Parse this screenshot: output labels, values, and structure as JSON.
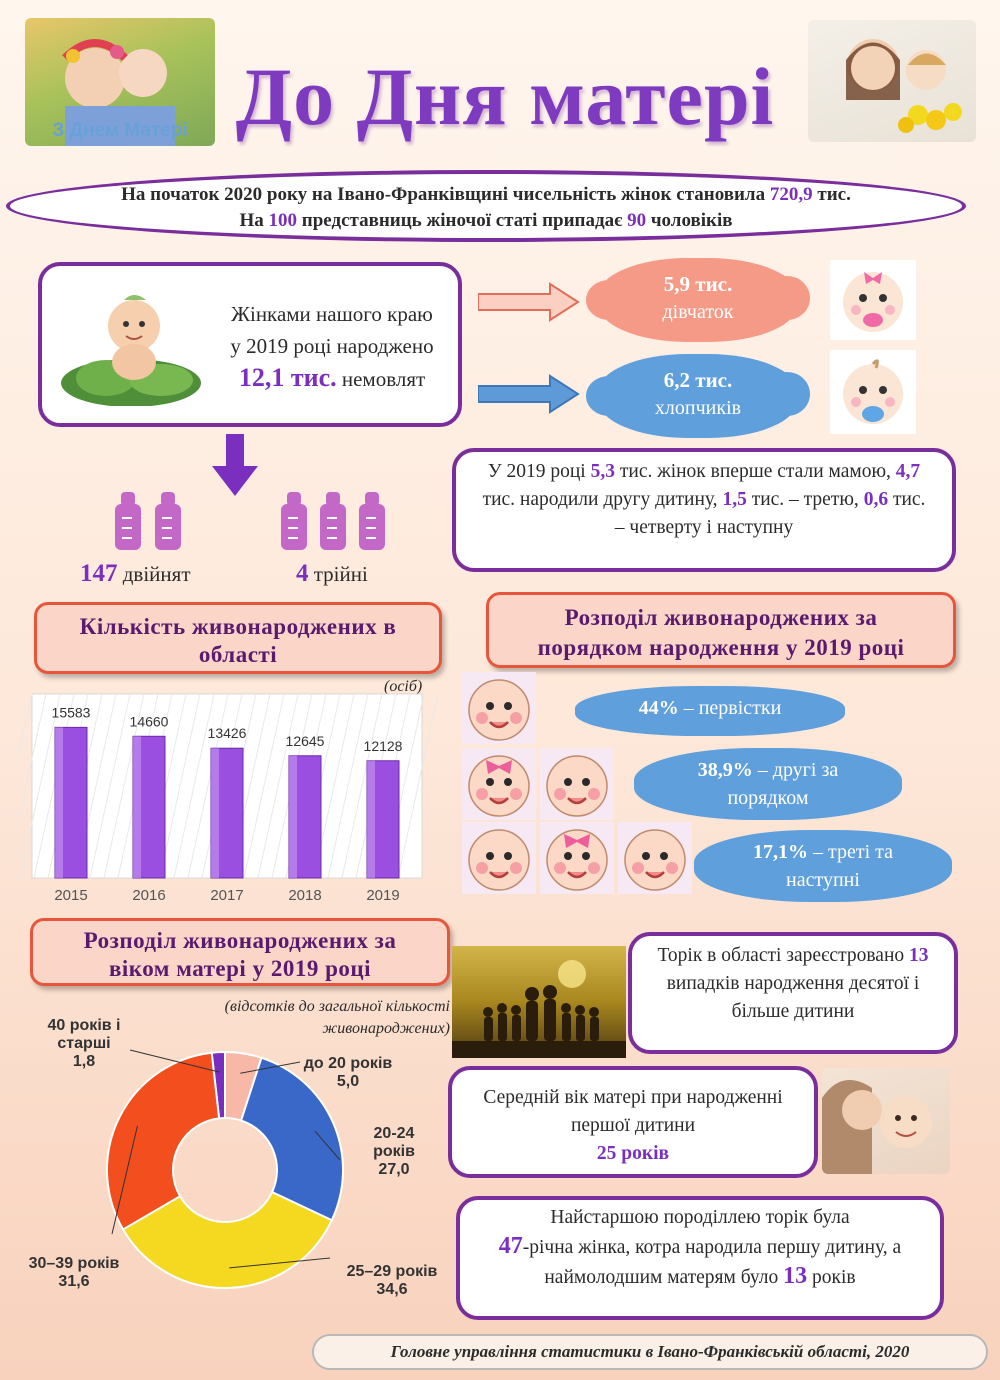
{
  "header": {
    "title": "До Дня матері",
    "photo_caption": "З Днем Матері"
  },
  "intro": {
    "line1_pre": "На початок 2020 року на Івано-Франківщині чисельність жінок становила ",
    "line1_value": "720,9",
    "line1_post": " тис.",
    "line2_pre": "На ",
    "line2_value1": "100",
    "line2_mid": " представниць жіночої статі припадає ",
    "line2_value2": "90",
    "line2_post": " чоловіків"
  },
  "births": {
    "line1": "Жінками нашого краю",
    "line2": "у 2019 році народжено",
    "value": "12,1 тис.",
    "unit": "немовлят",
    "girls_value": "5,9 тис.",
    "girls_label": "дівчаток",
    "boys_value": "6,2 тис.",
    "boys_label": "хлопчиків"
  },
  "multiples": {
    "twins_value": "147",
    "twins_label": "двійнят",
    "triplets_value": "4",
    "triplets_label": "трійні"
  },
  "first_mothers": {
    "p1": "У 2019 році ",
    "v1": "5,3",
    "p2": " тис. жінок  вперше стали мамою, ",
    "v2": "4,7",
    "p3": " тис. народили другу дитину, ",
    "v3": "1,5",
    "p4": " тис. – третю, ",
    "v4": "0,6",
    "p5": " тис. –  четверту і наступну"
  },
  "births_chart_title": "Кількість живонароджених в області",
  "births_chart_unit": "(осіб)",
  "order_title": "Розподіл живонароджених за порядком народження у 2019 році",
  "order": [
    {
      "value": "44%",
      "label": " – первістки"
    },
    {
      "value": "38,9%",
      "label": " – другі за порядком"
    },
    {
      "value": "17,1%",
      "label": " – треті та наступні"
    }
  ],
  "age_title": "Розподіл живонароджених за віком матері  у 2019 році",
  "age_note": "(відсотків до загальної кількості живонароджених)",
  "tenth_child": {
    "pre": "Торік в області зареєстровано ",
    "value": "13",
    "post": " випадків народження десятої і більше дитини"
  },
  "avg_age": {
    "text": "Середній вік матері при народженні першої дитини",
    "value": "25 років"
  },
  "oldest": {
    "p1": "Найстаршою породіллею торік була",
    "v1": "47",
    "p2": "-річна жінка, котра народила першу дитину, а наймолодшим матерям було ",
    "v2": "13",
    "p3": " років"
  },
  "footer": "Головне управління статистики в Івано-Франківській області, 2020",
  "chart_data": [
    {
      "type": "bar",
      "title": "Кількість живонароджених в області",
      "ylabel": "(осіб)",
      "categories": [
        "2015",
        "2016",
        "2017",
        "2018",
        "2019"
      ],
      "values": [
        15583,
        14660,
        13426,
        12645,
        12128
      ],
      "ylim": [
        0,
        18000
      ],
      "color": "#9b4fe0"
    },
    {
      "type": "pie",
      "title": "Розподіл живонароджених за віком матері  у 2019 році",
      "labels": [
        "до 20 років",
        "20-24 років",
        "25–29 років",
        "30–39 років",
        "40 років і старші"
      ],
      "values": [
        5.0,
        27.0,
        34.6,
        31.6,
        1.8
      ],
      "value_labels": [
        "5,0",
        "27,0",
        "34,6",
        "31,6",
        "1,8"
      ],
      "colors": [
        "#f7b8a8",
        "#3a68c8",
        "#f5d820",
        "#f24e1e",
        "#7a2ec0"
      ]
    }
  ]
}
